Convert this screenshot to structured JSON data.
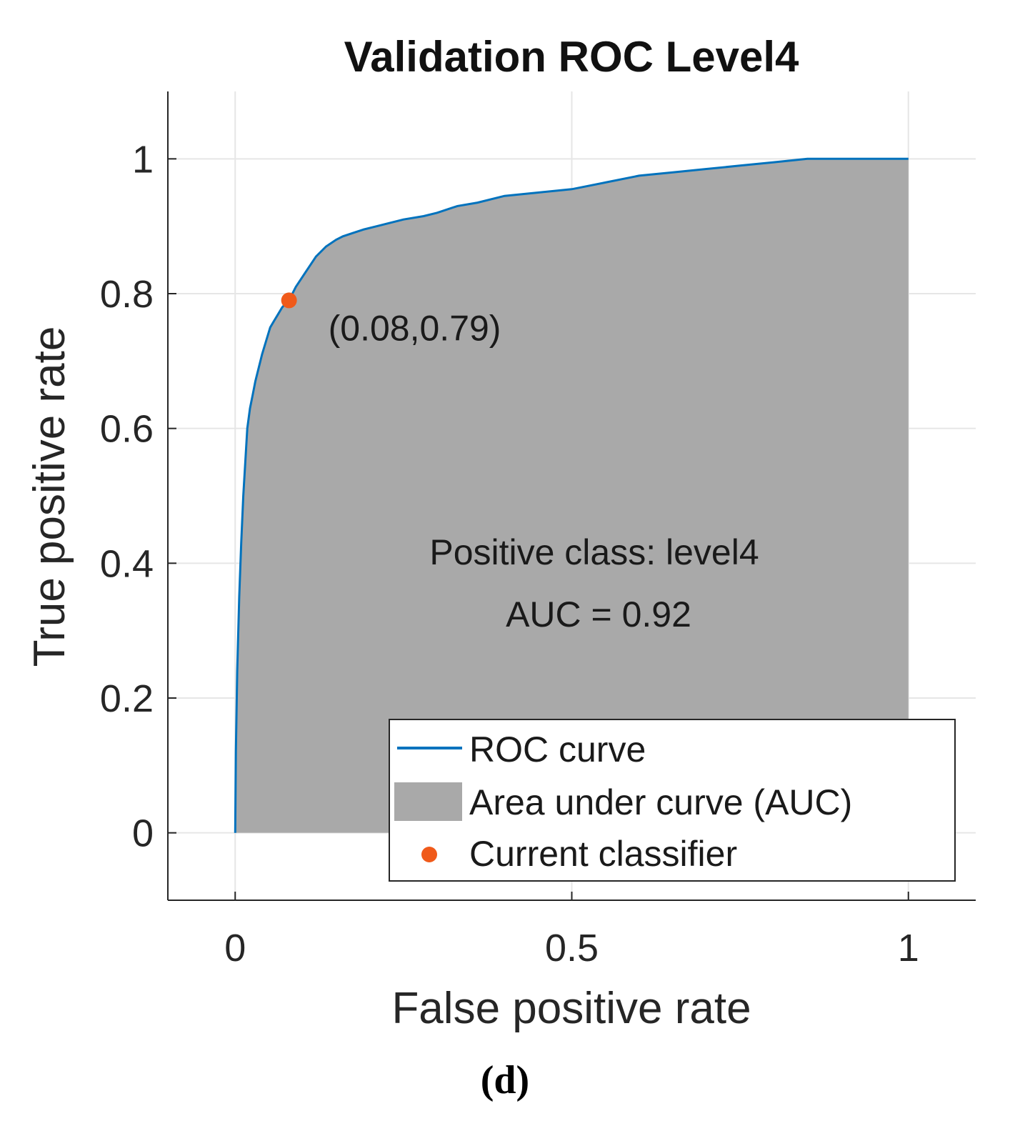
{
  "chart_data": {
    "type": "area",
    "title": "Validation ROC Level4",
    "xlabel": "False positive rate",
    "ylabel": "True positive rate",
    "xlim": [
      -0.1,
      1.1
    ],
    "ylim": [
      -0.1,
      1.1
    ],
    "x_ticks": [
      0,
      0.5,
      1
    ],
    "x_tick_labels": [
      "0",
      "0.5",
      "1"
    ],
    "y_ticks": [
      0,
      0.2,
      0.4,
      0.6,
      0.8,
      1
    ],
    "y_tick_labels": [
      "0",
      "0.2",
      "0.4",
      "0.6",
      "0.8",
      "1"
    ],
    "grid": true,
    "series": [
      {
        "name": "ROC curve",
        "color": "#0072BD",
        "x": [
          0,
          0.001,
          0.003,
          0.006,
          0.009,
          0.012,
          0.015,
          0.018,
          0.022,
          0.026,
          0.03,
          0.035,
          0.04,
          0.046,
          0.052,
          0.058,
          0.064,
          0.07,
          0.08,
          0.09,
          0.1,
          0.11,
          0.12,
          0.135,
          0.15,
          0.16,
          0.175,
          0.19,
          0.21,
          0.23,
          0.25,
          0.28,
          0.3,
          0.33,
          0.36,
          0.4,
          0.45,
          0.5,
          0.55,
          0.6,
          0.65,
          0.7,
          0.75,
          0.8,
          0.85,
          0.9,
          0.95,
          1.0
        ],
        "y": [
          0,
          0.12,
          0.24,
          0.35,
          0.43,
          0.5,
          0.55,
          0.6,
          0.63,
          0.65,
          0.67,
          0.69,
          0.71,
          0.73,
          0.75,
          0.76,
          0.77,
          0.78,
          0.79,
          0.81,
          0.825,
          0.84,
          0.855,
          0.87,
          0.88,
          0.885,
          0.89,
          0.895,
          0.9,
          0.905,
          0.91,
          0.915,
          0.92,
          0.93,
          0.935,
          0.945,
          0.95,
          0.955,
          0.965,
          0.975,
          0.98,
          0.985,
          0.99,
          0.995,
          1.0,
          1.0,
          1.0,
          1.0
        ]
      }
    ],
    "area": {
      "name": "Area under curve (AUC)",
      "color": "#A9A9A9"
    },
    "current_classifier": {
      "name": "Current classifier",
      "x": 0.08,
      "y": 0.79,
      "label": "(0.08,0.79)",
      "color": "#F05A1A"
    },
    "annotations": [
      "Positive class: level4",
      "AUC = 0.92"
    ],
    "legend": {
      "position": "bottom-right",
      "entries": [
        "ROC curve",
        "Area under curve (AUC)",
        "Current classifier"
      ]
    }
  },
  "caption": "(d)"
}
